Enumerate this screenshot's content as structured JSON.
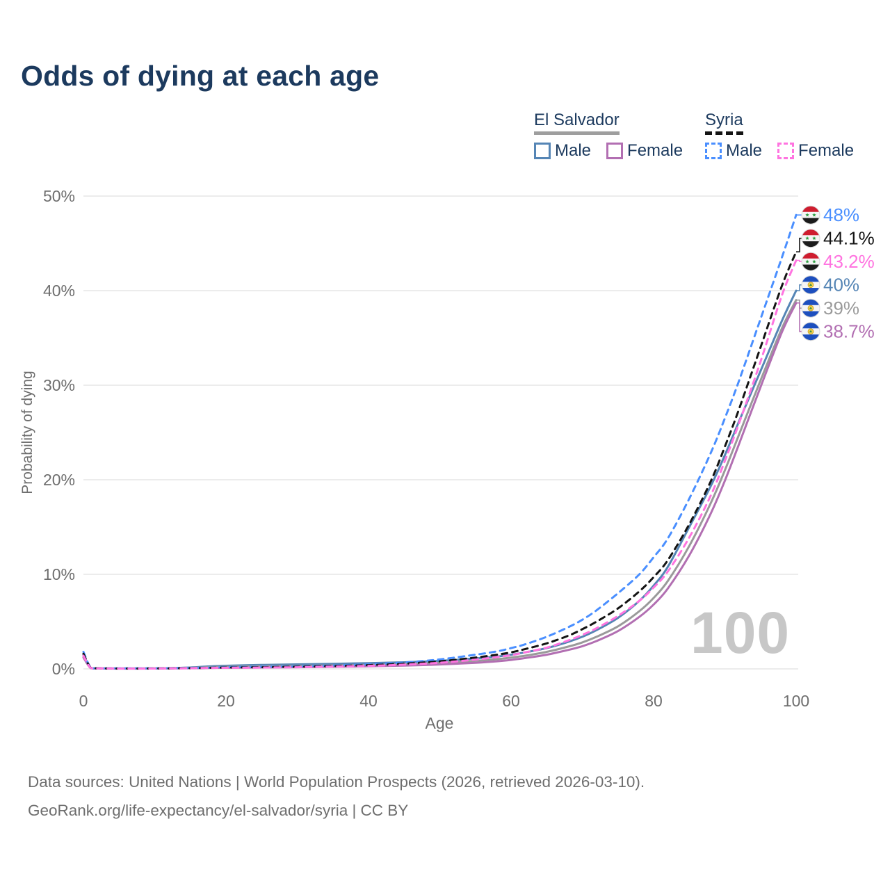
{
  "title": "Odds of dying at each age",
  "watermark_age": "100",
  "legend": {
    "groups": [
      {
        "label": "El Salvador",
        "line_style": "solid",
        "underline_color": "#9e9e9e",
        "items": [
          {
            "label": "Male",
            "color": "#5585b5"
          },
          {
            "label": "Female",
            "color": "#b26fb2"
          }
        ]
      },
      {
        "label": "Syria",
        "line_style": "dashed",
        "underline_color": "#141414",
        "items": [
          {
            "label": "Male",
            "color": "#4a8fff"
          },
          {
            "label": "Female",
            "color": "#ff74e0"
          }
        ]
      }
    ]
  },
  "footer": {
    "line1": "Data sources: United Nations | World Population Prospects (2026, retrieved 2026-03-10).",
    "line2": "GeoRank.org/life-expectancy/el-salvador/syria | CC BY"
  },
  "chart_data": {
    "type": "line",
    "title": "Odds of dying at each age",
    "xlabel": "Age",
    "ylabel": "Probability of dying",
    "xlim": [
      0,
      100
    ],
    "ylim": [
      0,
      50
    ],
    "xticks": [
      0,
      20,
      40,
      60,
      80,
      100
    ],
    "yticks": [
      0,
      10,
      20,
      30,
      40,
      50
    ],
    "ytick_labels": [
      "0%",
      "10%",
      "20%",
      "30%",
      "40%",
      "50%"
    ],
    "grid": "horizontal",
    "x": [
      0,
      1,
      2,
      3,
      5,
      8,
      10,
      12,
      15,
      18,
      20,
      25,
      30,
      35,
      40,
      45,
      50,
      55,
      58,
      60,
      62,
      65,
      68,
      70,
      72,
      75,
      78,
      80,
      82,
      85,
      88,
      90,
      92,
      95,
      98,
      100
    ],
    "series": [
      {
        "name": "Syria Male",
        "country": "Syria",
        "sex": "male",
        "color": "#4a8fff",
        "dash": true,
        "flag": "syria",
        "end_label": "48%",
        "values": [
          1.8,
          0.15,
          0.08,
          0.06,
          0.05,
          0.05,
          0.06,
          0.07,
          0.1,
          0.15,
          0.18,
          0.23,
          0.28,
          0.36,
          0.48,
          0.68,
          1.0,
          1.5,
          1.85,
          2.2,
          2.6,
          3.4,
          4.4,
          5.2,
          6.2,
          8.0,
          10.0,
          11.8,
          13.8,
          18.0,
          22.8,
          26.5,
          30.5,
          37.0,
          43.5,
          48.0
        ]
      },
      {
        "name": "Syria Both sexes",
        "country": "Syria",
        "sex": "both",
        "color": "#141414",
        "dash": true,
        "flag": "syria",
        "end_label": "44.1%",
        "values": [
          1.6,
          0.13,
          0.07,
          0.05,
          0.04,
          0.04,
          0.05,
          0.06,
          0.08,
          0.12,
          0.14,
          0.18,
          0.23,
          0.3,
          0.4,
          0.55,
          0.8,
          1.2,
          1.5,
          1.75,
          2.1,
          2.7,
          3.5,
          4.2,
          5.0,
          6.4,
          8.2,
          9.7,
          11.5,
          15.3,
          19.8,
          23.5,
          27.5,
          34.0,
          40.5,
          44.1
        ]
      },
      {
        "name": "Syria Female",
        "country": "Syria",
        "sex": "female",
        "color": "#ff74e0",
        "dash": true,
        "flag": "syria",
        "end_label": "43.2%",
        "values": [
          1.4,
          0.11,
          0.06,
          0.05,
          0.04,
          0.04,
          0.04,
          0.05,
          0.07,
          0.1,
          0.11,
          0.14,
          0.18,
          0.24,
          0.32,
          0.45,
          0.65,
          0.98,
          1.25,
          1.45,
          1.75,
          2.25,
          3.0,
          3.6,
          4.3,
          5.6,
          7.2,
          8.6,
          10.3,
          13.9,
          18.3,
          22.0,
          26.0,
          32.5,
          39.5,
          43.2
        ]
      },
      {
        "name": "El Salvador Male",
        "country": "El Salvador",
        "sex": "male",
        "color": "#5585b5",
        "dash": false,
        "flag": "el-salvador",
        "end_label": "40%",
        "values": [
          1.5,
          0.12,
          0.07,
          0.06,
          0.05,
          0.05,
          0.06,
          0.08,
          0.15,
          0.28,
          0.33,
          0.42,
          0.48,
          0.54,
          0.6,
          0.7,
          0.85,
          1.1,
          1.3,
          1.5,
          1.75,
          2.2,
          2.85,
          3.4,
          4.1,
          5.4,
          7.2,
          8.8,
          10.8,
          15.0,
          19.3,
          22.6,
          26.2,
          31.5,
          36.8,
          40.0
        ]
      },
      {
        "name": "El Salvador Both sexes",
        "country": "El Salvador",
        "sex": "both",
        "color": "#9a9a9a",
        "dash": false,
        "flag": "el-salvador",
        "end_label": "39%",
        "values": [
          1.35,
          0.1,
          0.06,
          0.05,
          0.04,
          0.04,
          0.05,
          0.06,
          0.11,
          0.19,
          0.22,
          0.28,
          0.32,
          0.37,
          0.42,
          0.5,
          0.63,
          0.85,
          1.02,
          1.2,
          1.4,
          1.8,
          2.35,
          2.8,
          3.4,
          4.5,
          6.1,
          7.5,
          9.3,
          13.0,
          17.5,
          21.0,
          24.8,
          30.5,
          36.0,
          39.0
        ]
      },
      {
        "name": "El Salvador Female",
        "country": "El Salvador",
        "sex": "female",
        "color": "#b26fb2",
        "dash": false,
        "flag": "el-salvador",
        "end_label": "38.7%",
        "values": [
          1.2,
          0.09,
          0.05,
          0.04,
          0.03,
          0.03,
          0.04,
          0.05,
          0.07,
          0.1,
          0.12,
          0.15,
          0.18,
          0.22,
          0.27,
          0.35,
          0.47,
          0.65,
          0.8,
          0.95,
          1.15,
          1.5,
          2.0,
          2.4,
          2.95,
          4.0,
          5.5,
          6.8,
          8.5,
          12.0,
          16.4,
          19.9,
          23.8,
          29.8,
          35.6,
          38.7
        ]
      }
    ]
  }
}
